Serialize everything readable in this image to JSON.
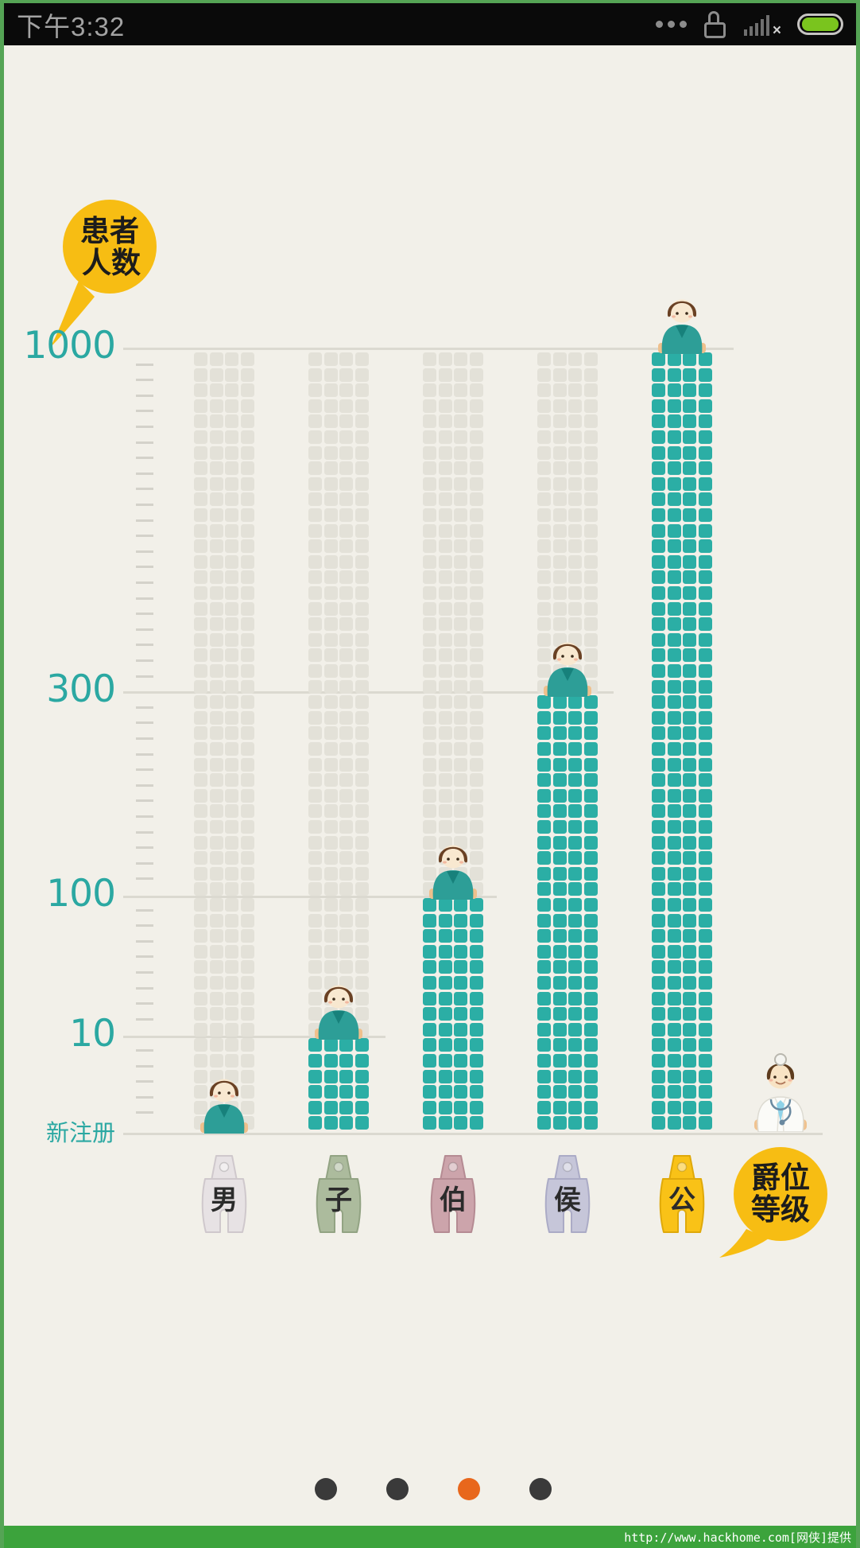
{
  "status_bar": {
    "time": "下午3:32",
    "icons": [
      "more-dots",
      "lock",
      "signal-no-connection",
      "battery-full"
    ]
  },
  "bubbles": {
    "y_axis": {
      "line1": "患者",
      "line2": "人数"
    },
    "x_axis": {
      "line1": "爵位",
      "line2": "等级"
    }
  },
  "chart_data": {
    "type": "bar",
    "title": "",
    "ylabel": "患者人数",
    "xlabel": "爵位等级",
    "categories": [
      "男",
      "子",
      "伯",
      "侯",
      "公"
    ],
    "values": [
      0,
      10,
      100,
      300,
      1000
    ],
    "value_labels": [
      "新注册",
      "10",
      "100",
      "300",
      "1000"
    ],
    "y_ticks_top_down": [
      "1000",
      "300",
      "100",
      "10",
      "新注册"
    ],
    "y_scale": "ordinal-nonlinear",
    "legend": "none",
    "grid": "unit-squares",
    "unit_grid": {
      "rows_total": 50,
      "columns_per_bar": 4,
      "rows_per_value": [
        0,
        6,
        15,
        28,
        50
      ]
    },
    "colors": {
      "bar": "#2BAEA5",
      "ghost": "#E3E1D8",
      "axis_text": "#2BA8A2",
      "gridline": "#DBD9D0",
      "bubble": "#F7BD13"
    }
  },
  "seals": [
    {
      "label": "男",
      "color": "#E7E2E4",
      "shade": "#CFC8CC"
    },
    {
      "label": "子",
      "color": "#ACBB9D",
      "shade": "#92A383"
    },
    {
      "label": "伯",
      "color": "#CCA4AB",
      "shade": "#B58B93"
    },
    {
      "label": "侯",
      "color": "#C6C6D9",
      "shade": "#ABABC6"
    },
    {
      "label": "公",
      "color": "#F9C217",
      "shade": "#DFA90A"
    }
  ],
  "figures": {
    "patient": "boy-in-teal-scrubs",
    "doctor": "doctor-with-head-mirror"
  },
  "pagination": {
    "count": 4,
    "active_index": 2,
    "colors": {
      "dot": "#3A3A3A",
      "active": "#E8671C"
    }
  },
  "footer": {
    "url_text": "http://www.hackhome.com[网侠]提供"
  }
}
